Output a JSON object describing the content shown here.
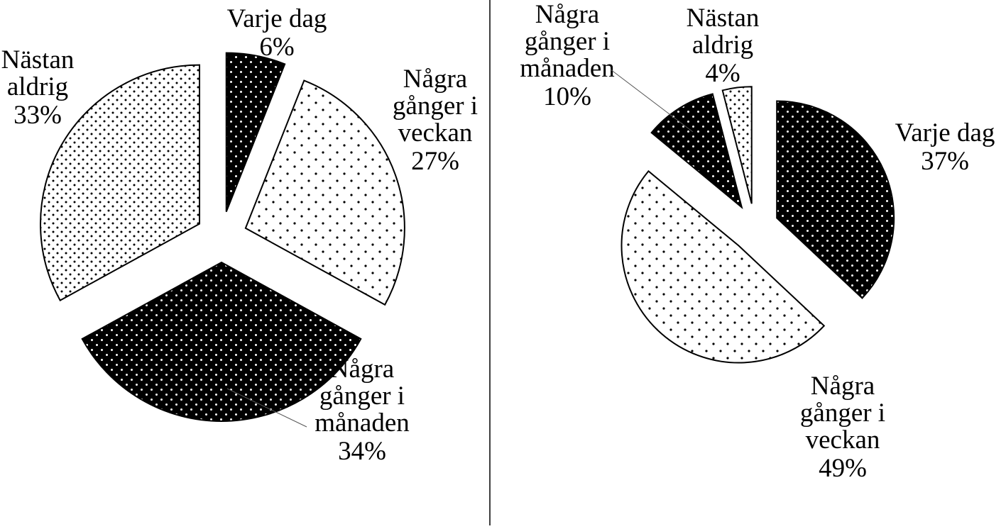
{
  "chart_data": [
    {
      "type": "pie",
      "title": "",
      "slices": [
        {
          "label": "Varje dag",
          "value": 6,
          "display": "6%",
          "pattern": "dark"
        },
        {
          "label": "Några gånger i veckan",
          "value": 27,
          "display": "27%",
          "pattern": "light-sparse"
        },
        {
          "label": "Några gånger i månaden",
          "value": 34,
          "display": "34%",
          "pattern": "dark"
        },
        {
          "label": "Nästan aldrig",
          "value": 33,
          "display": "33%",
          "pattern": "light-dense"
        }
      ],
      "exploded": true,
      "legend": "none",
      "data_labels": "outside"
    },
    {
      "type": "pie",
      "title": "",
      "slices": [
        {
          "label": "Varje dag",
          "value": 37,
          "display": "37%",
          "pattern": "dark"
        },
        {
          "label": "Några gånger i veckan",
          "value": 49,
          "display": "49%",
          "pattern": "light-sparse"
        },
        {
          "label": "Några gånger i månaden",
          "value": 10,
          "display": "10%",
          "pattern": "dark"
        },
        {
          "label": "Nästan aldrig",
          "value": 4,
          "display": "4%",
          "pattern": "light-dense"
        }
      ],
      "exploded": true,
      "legend": "none",
      "data_labels": "outside"
    }
  ],
  "colors": {
    "dark_fill": "#000000",
    "light_fill": "#ffffff",
    "outline": "#000000",
    "divider": "#000000"
  }
}
